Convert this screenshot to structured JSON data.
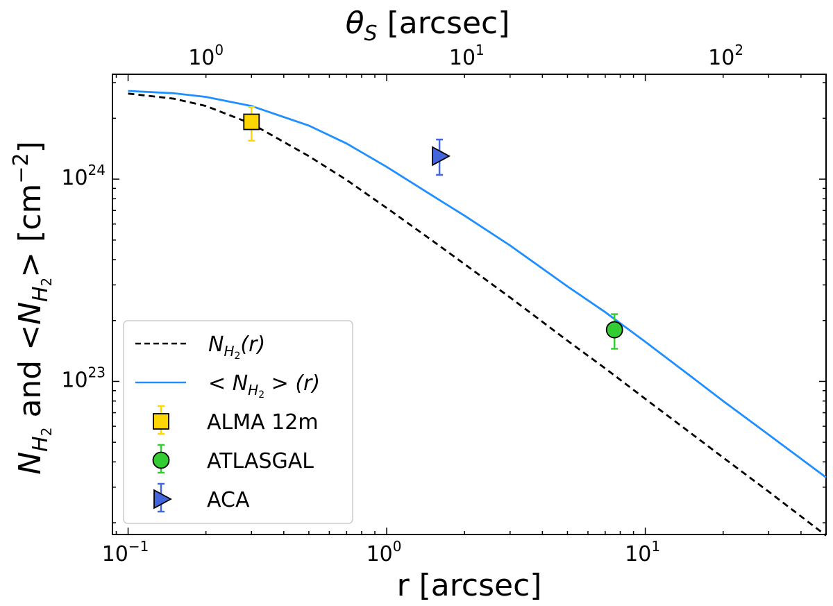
{
  "chart_data": {
    "type": "line",
    "x_scale": "log",
    "y_scale": "log",
    "xlim": [
      0.087,
      50
    ],
    "ylim": [
      1.75e+22,
      3.3e+24
    ],
    "xlabel": "r [arcsec]",
    "ylabel": {
      "prefix": "N",
      "sub": "H",
      "subsub": "2",
      "middle": " and <",
      "suffix": "> [cm",
      "sup": "−2",
      "end": "]"
    },
    "top_axis": {
      "label_base": "θ",
      "label_sub": "S",
      "label_rest": " [arcsec]",
      "ticks": [
        {
          "r": 0.205,
          "base": "10",
          "exp": "0"
        },
        {
          "r": 2.09,
          "base": "10",
          "exp": "1"
        },
        {
          "r": 21.0,
          "base": "10",
          "exp": "2"
        }
      ]
    },
    "x_ticks": [
      {
        "value": 0.1,
        "base": "10",
        "exp": "−1"
      },
      {
        "value": 1,
        "base": "10",
        "exp": "0"
      },
      {
        "value": 10,
        "base": "10",
        "exp": "1"
      }
    ],
    "y_ticks": [
      {
        "value": 1e+23,
        "base": "10",
        "exp": "23"
      },
      {
        "value": 1e+24,
        "base": "10",
        "exp": "24"
      }
    ],
    "series": [
      {
        "name": "N_H2(r)",
        "style": "dashed",
        "color": "#000000",
        "x": [
          0.1,
          0.15,
          0.2,
          0.3,
          0.5,
          0.7,
          1.0,
          1.5,
          2.0,
          3.0,
          5.0,
          7.0,
          10.0,
          15.0,
          20.0,
          30.0,
          50.0
        ],
        "y": [
          2.65e+24,
          2.5e+24,
          2.3e+24,
          1.88e+24,
          1.3e+24,
          9.9e+23,
          7.2e+23,
          4.97e+23,
          3.8e+23,
          2.6e+23,
          1.59e+23,
          1.16e+23,
          8.2e+22,
          5.55e+22,
          4.2e+22,
          2.85e+22,
          1.73e+22
        ]
      },
      {
        "name": "<N_H2>(r)",
        "style": "solid",
        "color": "#1f8fff",
        "x": [
          0.1,
          0.15,
          0.2,
          0.3,
          0.5,
          0.7,
          1.0,
          1.5,
          2.0,
          3.0,
          5.0,
          7.0,
          10.0,
          15.0,
          20.0,
          30.0,
          50.0
        ],
        "y": [
          2.73e+24,
          2.66e+24,
          2.55e+24,
          2.3e+24,
          1.84e+24,
          1.5e+24,
          1.15e+24,
          8.3e+23,
          6.6e+23,
          4.7e+23,
          2.95e+23,
          2.2e+23,
          1.57e+23,
          1.06e+23,
          8e+22,
          5.45e+22,
          3.35e+22
        ]
      }
    ],
    "points": [
      {
        "name": "ALMA 12m",
        "marker": "square",
        "color": "#ffd700",
        "err_color": "#ffd700",
        "x": 0.3,
        "y": 1.92e+24,
        "ylo": 1.55e+24,
        "yhi": 2.27e+24
      },
      {
        "name": "ATLASGAL",
        "marker": "circle",
        "color": "#33cc33",
        "err_color": "#33cc33",
        "x": 7.6,
        "y": 1.8e+23,
        "ylo": 1.45e+23,
        "yhi": 2.15e+23
      },
      {
        "name": "ACA",
        "marker": "triangle-right",
        "color": "#4466dd",
        "err_color": "#4466dd",
        "x": 1.6,
        "y": 1.3e+24,
        "ylo": 1.05e+24,
        "yhi": 1.57e+24
      }
    ],
    "legend": {
      "placement": "lower-left",
      "entries": [
        {
          "key": "dashed",
          "text_base": "N",
          "text_sub": "H",
          "text_subsub": "2",
          "text_rest": "(r)"
        },
        {
          "key": "solid",
          "text_pre": "< ",
          "text_base": "N",
          "text_sub": "H",
          "text_subsub": "2",
          "text_rest": " > (r)"
        },
        {
          "key": "alma",
          "text": "ALMA 12m"
        },
        {
          "key": "atlasgal",
          "text": "ATLASGAL"
        },
        {
          "key": "aca",
          "text": "ACA"
        }
      ]
    }
  }
}
